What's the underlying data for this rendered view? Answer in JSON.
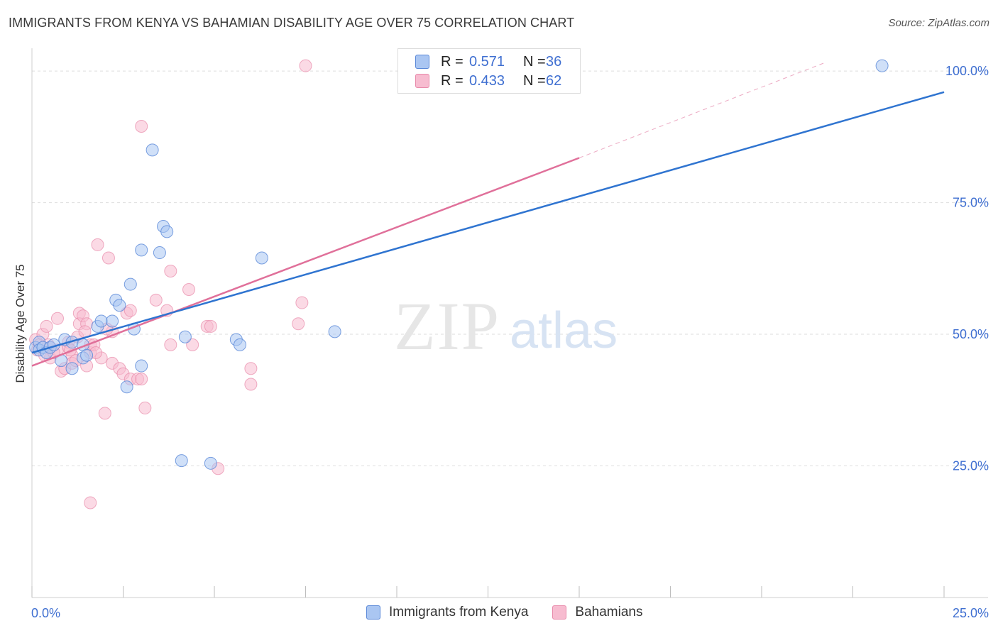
{
  "header": {
    "title": "IMMIGRANTS FROM KENYA VS BAHAMIAN DISABILITY AGE OVER 75 CORRELATION CHART",
    "source": "Source: ZipAtlas.com"
  },
  "watermark": {
    "zip": "ZIP",
    "atlas": "atlas"
  },
  "legend": {
    "rows": [
      {
        "r_label": "R =",
        "r_value": "0.571",
        "n_label": "N =",
        "n_value": "36"
      },
      {
        "r_label": "R =",
        "r_value": "0.433",
        "n_label": "N =",
        "n_value": "62"
      }
    ]
  },
  "colors": {
    "kenya_fill": "#aac6f2",
    "kenya_stroke": "#5a88d8",
    "kenya_line": "#2f74d0",
    "bahamas_fill": "#f7bcd0",
    "bahamas_stroke": "#e88aaa",
    "bahamas_line": "#e0709a",
    "tick_label": "#3f6fd1",
    "grid": "#dddddd"
  },
  "chart_data": {
    "type": "scatter",
    "title": "IMMIGRANTS FROM KENYA VS BAHAMIAN DISABILITY AGE OVER 75 CORRELATION CHART",
    "xlabel": "",
    "ylabel": "Disability Age Over 75",
    "xlim": [
      0,
      25
    ],
    "ylim": [
      0,
      105
    ],
    "x_tick_labels": [
      "0.0%",
      "25.0%"
    ],
    "y_ticks": [
      25,
      50,
      75,
      100
    ],
    "y_tick_labels": [
      "25.0%",
      "50.0%",
      "75.0%",
      "100.0%"
    ],
    "grid": true,
    "legend_position": "top-center",
    "series": [
      {
        "name": "Immigrants from Kenya",
        "r": 0.571,
        "n": 36,
        "trend": {
          "x0": 0.0,
          "y0": 46.5,
          "x1": 25.0,
          "y1": 96.0
        },
        "points": [
          [
            0.1,
            47.5
          ],
          [
            0.2,
            48.5
          ],
          [
            0.2,
            47.0
          ],
          [
            0.3,
            47.5
          ],
          [
            0.4,
            46.5
          ],
          [
            0.5,
            47.5
          ],
          [
            0.6,
            48.0
          ],
          [
            0.8,
            45.0
          ],
          [
            0.9,
            49.0
          ],
          [
            1.1,
            48.5
          ],
          [
            1.1,
            43.5
          ],
          [
            1.4,
            48.0
          ],
          [
            1.4,
            45.5
          ],
          [
            1.5,
            46.0
          ],
          [
            1.8,
            51.5
          ],
          [
            1.9,
            52.5
          ],
          [
            2.2,
            52.5
          ],
          [
            2.3,
            56.5
          ],
          [
            2.4,
            55.5
          ],
          [
            2.6,
            40.0
          ],
          [
            2.7,
            59.5
          ],
          [
            2.8,
            51.0
          ],
          [
            3.0,
            66.0
          ],
          [
            3.0,
            44.0
          ],
          [
            3.3,
            85.0
          ],
          [
            3.5,
            65.5
          ],
          [
            3.6,
            70.5
          ],
          [
            3.7,
            69.5
          ],
          [
            4.1,
            26.0
          ],
          [
            4.2,
            49.5
          ],
          [
            4.9,
            25.5
          ],
          [
            5.6,
            49.0
          ],
          [
            5.7,
            48.0
          ],
          [
            6.3,
            64.5
          ],
          [
            8.3,
            50.5
          ],
          [
            23.3,
            101.0
          ]
        ]
      },
      {
        "name": "Bahamians",
        "r": 0.433,
        "n": 62,
        "trend": {
          "x0": 0.0,
          "y0": 44.0,
          "x1": 15.0,
          "y1": 83.5
        },
        "trend_ext": {
          "x0": 15.0,
          "y0": 83.5,
          "x1": 21.7,
          "y1": 101.5
        },
        "points": [
          [
            0.1,
            49.0
          ],
          [
            0.2,
            48.0
          ],
          [
            0.3,
            50.0
          ],
          [
            0.4,
            51.5
          ],
          [
            0.5,
            47.5
          ],
          [
            0.5,
            45.5
          ],
          [
            0.7,
            47.0
          ],
          [
            0.7,
            53.0
          ],
          [
            0.8,
            43.0
          ],
          [
            0.9,
            43.5
          ],
          [
            1.0,
            47.5
          ],
          [
            1.0,
            48.5
          ],
          [
            1.1,
            46.0
          ],
          [
            1.1,
            44.5
          ],
          [
            1.2,
            45.0
          ],
          [
            1.3,
            54.0
          ],
          [
            1.3,
            52.0
          ],
          [
            1.4,
            53.5
          ],
          [
            1.5,
            44.0
          ],
          [
            1.5,
            52.0
          ],
          [
            1.6,
            46.5
          ],
          [
            1.6,
            48.0
          ],
          [
            1.6,
            18.0
          ],
          [
            1.7,
            48.0
          ],
          [
            1.8,
            67.0
          ],
          [
            1.9,
            45.5
          ],
          [
            2.0,
            35.0
          ],
          [
            2.1,
            64.5
          ],
          [
            2.2,
            50.5
          ],
          [
            2.2,
            44.5
          ],
          [
            2.4,
            43.5
          ],
          [
            2.5,
            42.5
          ],
          [
            2.6,
            54.0
          ],
          [
            2.7,
            54.5
          ],
          [
            2.7,
            41.5
          ],
          [
            2.9,
            41.5
          ],
          [
            3.0,
            89.5
          ],
          [
            3.0,
            41.5
          ],
          [
            3.1,
            36.0
          ],
          [
            3.4,
            56.5
          ],
          [
            3.7,
            54.5
          ],
          [
            3.8,
            62.0
          ],
          [
            3.8,
            48.0
          ],
          [
            4.3,
            58.5
          ],
          [
            4.4,
            48.0
          ],
          [
            4.8,
            51.5
          ],
          [
            4.9,
            51.5
          ],
          [
            5.1,
            24.5
          ],
          [
            6.0,
            43.5
          ],
          [
            6.0,
            40.5
          ],
          [
            7.3,
            52.0
          ],
          [
            7.4,
            56.0
          ],
          [
            7.5,
            101.0
          ],
          [
            0.15,
            47.0
          ],
          [
            0.35,
            46.0
          ],
          [
            0.6,
            46.5
          ],
          [
            1.05,
            47.0
          ],
          [
            1.25,
            49.5
          ],
          [
            1.75,
            46.5
          ],
          [
            0.45,
            48.0
          ],
          [
            2.05,
            51.0
          ],
          [
            1.45,
            50.5
          ]
        ]
      }
    ]
  },
  "bottom_legend": {
    "items": [
      "Immigrants from Kenya",
      "Bahamians"
    ]
  }
}
